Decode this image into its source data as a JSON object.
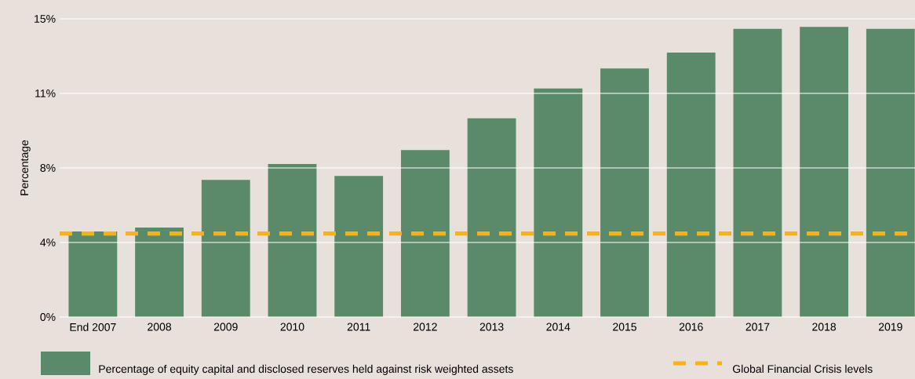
{
  "chart_data": {
    "type": "bar",
    "ylabel": "Percentage",
    "categories": [
      "End 2007",
      "2008",
      "2009",
      "2010",
      "2011",
      "2012",
      "2013",
      "2014",
      "2015",
      "2016",
      "2017",
      "2018",
      "2019"
    ],
    "series": [
      {
        "name": "Percentage of equity capital and disclosed reserves held against risk weighted assets",
        "color": "#5b8a6b",
        "values": [
          4.3,
          4.5,
          6.9,
          7.7,
          7.1,
          8.4,
          10.0,
          11.5,
          12.5,
          13.3,
          14.5,
          14.6,
          14.5
        ]
      }
    ],
    "ylim": [
      0,
      15
    ],
    "yticks": [
      {
        "value": 0,
        "label": "0%"
      },
      {
        "value": 3.75,
        "label": "4%"
      },
      {
        "value": 7.5,
        "label": "8%"
      },
      {
        "value": 11.25,
        "label": "11%"
      },
      {
        "value": 15,
        "label": "15%"
      }
    ],
    "ref_lines": [
      {
        "axis": "y",
        "value": 4.2,
        "label": "Global Financial Crisis levels",
        "color": "#f5b21a",
        "line_style": "dashed"
      }
    ],
    "grid": "y",
    "legend": "bottom"
  }
}
